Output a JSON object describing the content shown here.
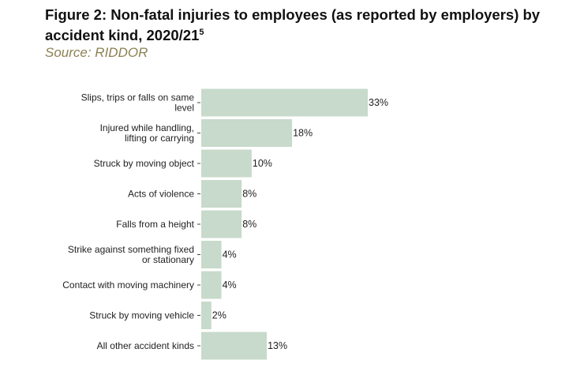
{
  "header": {
    "title": "Figure 2: Non-fatal injuries to employees (as reported by employers) by accident kind, 2020/21",
    "title_superscript": "5",
    "source": "Source: RIDDOR"
  },
  "colors": {
    "bar": "#c7dacb",
    "tick": "#444444",
    "text": "#222222",
    "source": "#8c8153"
  },
  "chart_data": {
    "type": "bar",
    "orientation": "horizontal",
    "categories": [
      [
        "Slips, trips or falls on same",
        "level"
      ],
      [
        "Injured while handling,",
        "lifting or carrying"
      ],
      [
        "Struck by moving object"
      ],
      [
        "Acts of violence"
      ],
      [
        "Falls from a height"
      ],
      [
        "Strike against something fixed",
        "or stationary"
      ],
      [
        "Contact with moving machinery"
      ],
      [
        "Struck by moving vehicle"
      ],
      [
        "All other accident kinds"
      ]
    ],
    "values": [
      33,
      18,
      10,
      8,
      8,
      4,
      4,
      2,
      13
    ],
    "value_labels": [
      "33%",
      "18%",
      "10%",
      "8%",
      "8%",
      "4%",
      "4%",
      "2%",
      "13%"
    ],
    "unit": "%",
    "xlim": [
      0,
      33
    ],
    "grid": false,
    "legend": "none"
  }
}
